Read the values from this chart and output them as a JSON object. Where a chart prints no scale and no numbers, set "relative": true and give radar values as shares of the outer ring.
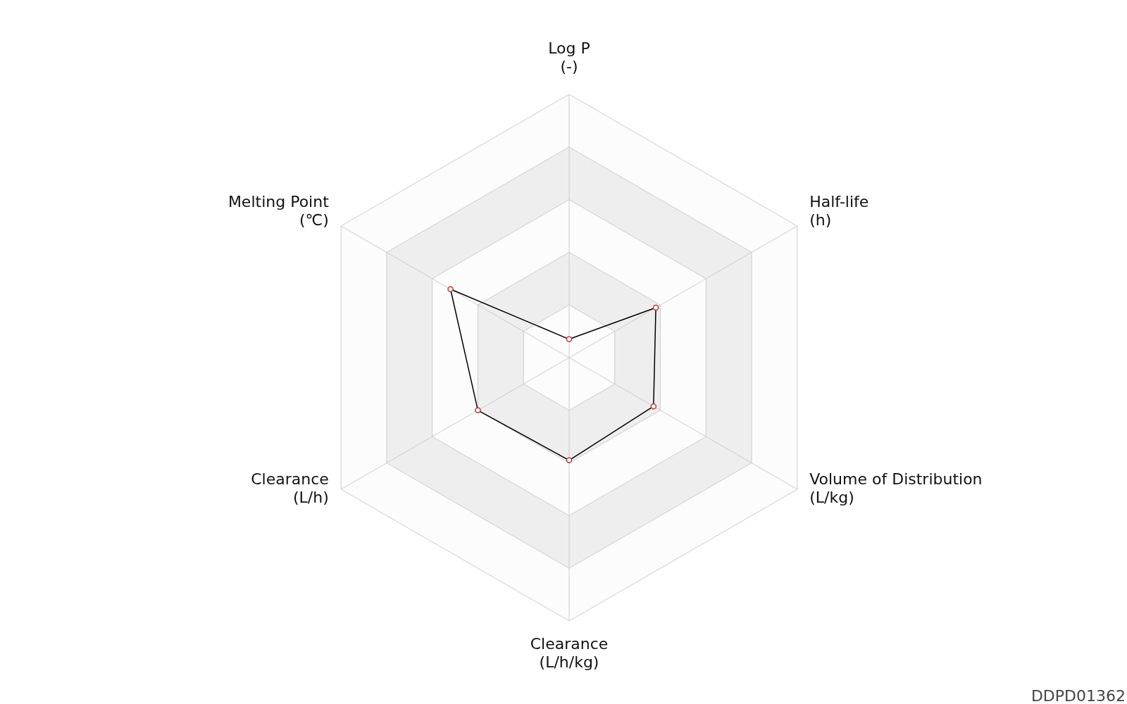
{
  "chart_data": {
    "type": "radar",
    "relative": true,
    "categories": [
      "Log P\n(-)",
      "Half-life\n(h)",
      "Volume of Distribution\n(L/kg)",
      "Clearance\n(L/h/kg)",
      "Clearance\n(L/h)",
      "Melting Point\n(℃)"
    ],
    "series": [
      {
        "color": "#000000",
        "values": [
          0.07,
          0.38,
          0.37,
          0.39,
          0.4,
          0.52
        ]
      }
    ],
    "marker": "circle",
    "annotations": [
      "DDPD01362"
    ]
  }
}
